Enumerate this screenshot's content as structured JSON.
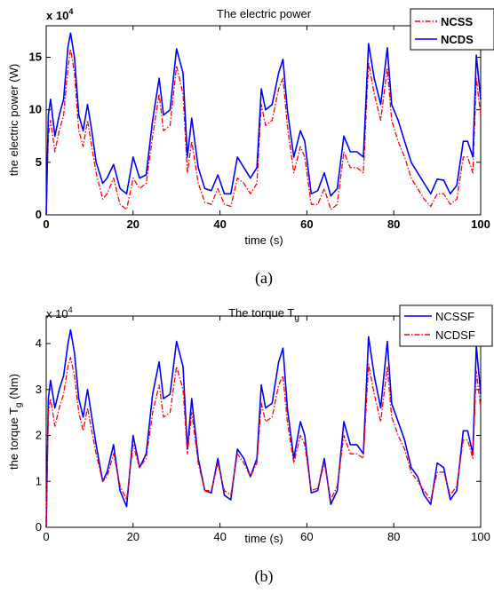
{
  "chart_data": [
    {
      "id": "a",
      "type": "line",
      "title": "The electric power",
      "xlabel": "time (s)",
      "ylabel": "the electric power (W)",
      "exponent_label": "x 10",
      "exponent_power": "4",
      "caption": "(a)",
      "xlim": [
        0,
        100
      ],
      "ylim": [
        0,
        18
      ],
      "xticks": [
        0,
        20,
        40,
        60,
        80,
        100
      ],
      "xtick_labels": [
        "0",
        "20",
        "40",
        "60",
        "80",
        "100"
      ],
      "yticks": [
        0,
        5,
        10,
        15
      ],
      "ytick_labels": [
        "0",
        "5",
        "10",
        "15"
      ],
      "grid": false,
      "legend_position": "top-right",
      "series": [
        {
          "name": "NCSS",
          "color": "#ff0000",
          "style": "dash-dot",
          "x": [
            0,
            0.5,
            1,
            2,
            3,
            4,
            5,
            5.6,
            6.5,
            7.5,
            8.5,
            9.5,
            10.5,
            11.5,
            13,
            14,
            15.5,
            17,
            18.5,
            20,
            21.5,
            23,
            24.5,
            26,
            27,
            28.5,
            30,
            31.5,
            32.5,
            33.5,
            35,
            36.5,
            38,
            39.5,
            41,
            42.5,
            44,
            45.5,
            47,
            48.5,
            49.5,
            50.5,
            52,
            53.5,
            54.5,
            55.5,
            57,
            58.5,
            59.5,
            61,
            62.5,
            64,
            65.5,
            67,
            68.5,
            70,
            71.5,
            73,
            74.2,
            75.5,
            77,
            78.5,
            79.5,
            81,
            82.5,
            84,
            85.5,
            87,
            88.5,
            90,
            91.5,
            93,
            94.5,
            96,
            97,
            98.2,
            99,
            100
          ],
          "values": [
            0,
            7.5,
            9.0,
            6.0,
            8.0,
            9.5,
            14.0,
            15.8,
            13.5,
            8.0,
            6.5,
            9.0,
            6.5,
            4.0,
            1.5,
            2.0,
            3.5,
            1.0,
            0.5,
            3.5,
            2.5,
            3.0,
            7.5,
            11.5,
            8.0,
            8.5,
            14.2,
            11.5,
            4.0,
            7.0,
            3.0,
            1.2,
            1.0,
            2.5,
            1.0,
            0.8,
            3.5,
            3.0,
            2.0,
            3.0,
            10.5,
            8.5,
            9.0,
            12.0,
            13.0,
            8.5,
            4.0,
            6.5,
            5.5,
            1.0,
            1.0,
            2.5,
            0.5,
            1.0,
            6.0,
            4.5,
            4.5,
            4.0,
            14.5,
            11.5,
            9.0,
            14.0,
            9.0,
            7.0,
            5.5,
            3.5,
            2.5,
            1.5,
            0.8,
            2.0,
            2.0,
            1.0,
            1.5,
            5.5,
            5.5,
            4.0,
            13.0,
            9.5
          ]
        },
        {
          "name": "NCDS",
          "color": "#0000ff",
          "style": "solid",
          "x": [
            0,
            0.5,
            1,
            2,
            3,
            4,
            5,
            5.6,
            6.5,
            7.5,
            8.5,
            9.5,
            10.5,
            11.5,
            13,
            14,
            15.5,
            17,
            18.5,
            20,
            21.5,
            23,
            24.5,
            26,
            27,
            28.5,
            30,
            31.5,
            32.5,
            33.5,
            35,
            36.5,
            38,
            39.5,
            41,
            42.5,
            44,
            45.5,
            47,
            48.5,
            49.5,
            50.5,
            52,
            53.5,
            54.5,
            55.5,
            57,
            58.5,
            59.5,
            61,
            62.5,
            64,
            65.5,
            67,
            68.5,
            70,
            71.5,
            73,
            74.2,
            75.5,
            77,
            78.5,
            79.5,
            81,
            82.5,
            84,
            85.5,
            87,
            88.5,
            90,
            91.5,
            93,
            94.5,
            96,
            97,
            98.2,
            99,
            100
          ],
          "values": [
            0,
            9.5,
            11.0,
            7.5,
            9.5,
            11.0,
            16.0,
            17.3,
            15.0,
            9.5,
            8.0,
            10.5,
            8.0,
            5.0,
            3.0,
            3.5,
            4.8,
            2.5,
            2.0,
            5.5,
            3.5,
            3.8,
            9.0,
            13.0,
            9.5,
            10.0,
            15.8,
            13.5,
            5.5,
            9.2,
            4.5,
            2.5,
            2.3,
            3.8,
            2.0,
            2.0,
            5.5,
            4.5,
            3.5,
            4.5,
            12.0,
            10.0,
            10.5,
            13.5,
            14.8,
            10.0,
            5.5,
            8.0,
            7.0,
            2.0,
            2.3,
            4.0,
            1.8,
            2.5,
            7.5,
            6.0,
            6.0,
            5.5,
            16.3,
            13.0,
            10.5,
            15.9,
            10.5,
            9.0,
            7.0,
            5.0,
            4.0,
            3.0,
            2.0,
            3.4,
            3.3,
            2.0,
            2.8,
            7.0,
            7.0,
            5.5,
            15.2,
            11.0
          ]
        }
      ]
    },
    {
      "id": "b",
      "type": "line",
      "title": "The torque T",
      "title_sub": "g",
      "xlabel": "time (s)",
      "ylabel": "the torque T",
      "ylabel_sub": "g",
      "ylabel_suffix": " (Nm)",
      "exponent_label": "x 10",
      "exponent_power": "4",
      "caption": "(b)",
      "xlim": [
        0,
        100
      ],
      "ylim": [
        0,
        4.6
      ],
      "xticks": [
        0,
        20,
        40,
        60,
        80,
        100
      ],
      "xtick_labels": [
        "0",
        "20",
        "40",
        "60",
        "80",
        "100"
      ],
      "yticks": [
        0,
        1,
        2,
        3,
        4
      ],
      "ytick_labels": [
        "0",
        "1",
        "2",
        "3",
        "4"
      ],
      "grid": false,
      "legend_position": "top-right",
      "series": [
        {
          "name": "NCSSF",
          "color": "#0000ff",
          "style": "solid",
          "x": [
            0,
            0.5,
            1,
            2,
            3,
            4,
            5,
            5.6,
            6.5,
            7.5,
            8.5,
            9.5,
            10.5,
            11.5,
            13,
            14,
            15.5,
            17,
            18.5,
            20,
            21.5,
            23,
            24.5,
            26,
            27,
            28.5,
            30,
            31.5,
            32.5,
            33.5,
            35,
            36.5,
            38,
            39.5,
            41,
            42.5,
            44,
            45.5,
            47,
            48.5,
            49.5,
            50.5,
            52,
            53.5,
            54.5,
            55.5,
            57,
            58.5,
            59.5,
            61,
            62.5,
            64,
            65.5,
            67,
            68.5,
            70,
            71.5,
            73,
            74.2,
            75.5,
            77,
            78.5,
            79.5,
            81,
            82.5,
            84,
            85.5,
            87,
            88.5,
            90,
            91.5,
            93,
            94.5,
            96,
            97,
            98.2,
            99,
            100
          ],
          "values": [
            0,
            2.8,
            3.2,
            2.6,
            3.0,
            3.3,
            4.0,
            4.3,
            3.8,
            2.8,
            2.4,
            3.0,
            2.4,
            1.8,
            1.0,
            1.2,
            1.8,
            0.8,
            0.45,
            2.0,
            1.3,
            1.6,
            2.9,
            3.6,
            2.8,
            2.9,
            4.05,
            3.5,
            1.7,
            2.8,
            1.5,
            0.8,
            0.75,
            1.5,
            0.7,
            0.6,
            1.7,
            1.5,
            1.1,
            1.5,
            3.1,
            2.6,
            2.7,
            3.6,
            3.9,
            2.6,
            1.5,
            2.3,
            2.0,
            0.75,
            0.8,
            1.5,
            0.5,
            0.8,
            2.3,
            1.8,
            1.8,
            1.6,
            4.15,
            3.3,
            2.6,
            4.05,
            2.7,
            2.3,
            1.9,
            1.3,
            1.1,
            0.7,
            0.5,
            1.4,
            1.3,
            0.6,
            0.8,
            2.1,
            2.1,
            1.6,
            3.95,
            2.9
          ]
        },
        {
          "name": "NCDSF",
          "color": "#ff0000",
          "style": "dash-dot",
          "x": [
            0,
            0.5,
            1,
            2,
            3,
            4,
            5,
            5.6,
            6.5,
            7.5,
            8.5,
            9.5,
            10.5,
            11.5,
            13,
            14,
            15.5,
            17,
            18.5,
            20,
            21.5,
            23,
            24.5,
            26,
            27,
            28.5,
            30,
            31.5,
            32.5,
            33.5,
            35,
            36.5,
            38,
            39.5,
            41,
            42.5,
            44,
            45.5,
            47,
            48.5,
            49.5,
            50.5,
            52,
            53.5,
            54.5,
            55.5,
            57,
            58.5,
            59.5,
            61,
            62.5,
            64,
            65.5,
            67,
            68.5,
            70,
            71.5,
            73,
            74.2,
            75.5,
            77,
            78.5,
            79.5,
            81,
            82.5,
            84,
            85.5,
            87,
            88.5,
            90,
            91.5,
            93,
            94.5,
            96,
            97,
            98.2,
            99,
            100
          ],
          "values": [
            0,
            2.5,
            2.8,
            2.2,
            2.6,
            2.9,
            3.5,
            3.7,
            3.3,
            2.5,
            2.1,
            2.6,
            2.1,
            1.6,
            1.0,
            1.1,
            1.6,
            0.9,
            0.6,
            1.8,
            1.3,
            1.5,
            2.5,
            3.1,
            2.4,
            2.5,
            3.5,
            3.0,
            1.6,
            2.5,
            1.4,
            0.8,
            0.8,
            1.4,
            0.8,
            0.7,
            1.6,
            1.4,
            1.1,
            1.4,
            2.7,
            2.3,
            2.4,
            3.1,
            3.3,
            2.3,
            1.4,
            2.0,
            1.8,
            0.8,
            0.85,
            1.4,
            0.6,
            0.9,
            2.0,
            1.6,
            1.6,
            1.5,
            3.55,
            2.9,
            2.3,
            3.5,
            2.4,
            2.0,
            1.7,
            1.2,
            1.0,
            0.8,
            0.6,
            1.2,
            1.2,
            0.7,
            0.9,
            1.9,
            1.9,
            1.5,
            3.4,
            2.6
          ]
        }
      ]
    }
  ]
}
